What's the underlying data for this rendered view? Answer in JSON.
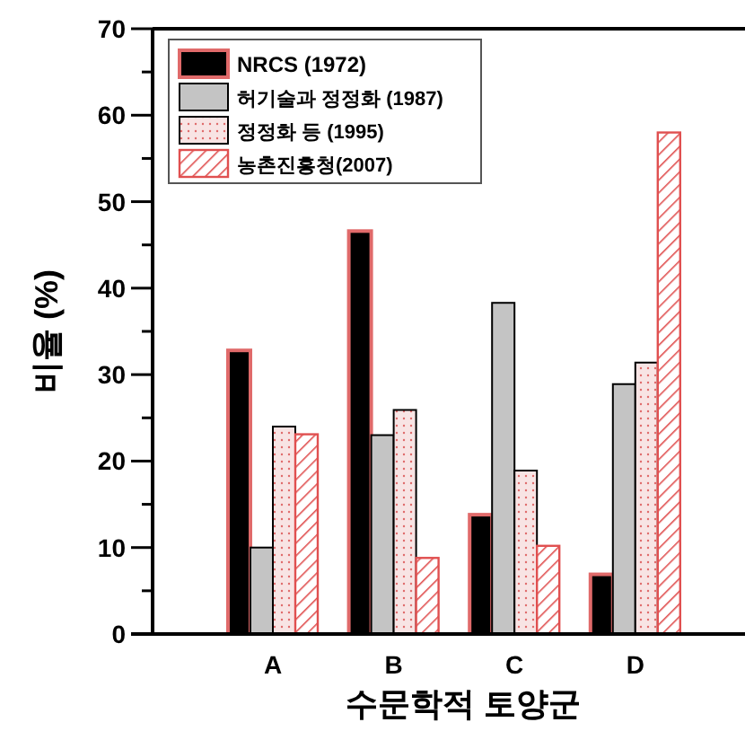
{
  "chart_data": {
    "type": "bar",
    "xlabel": "수문학적 토양군",
    "ylabel": "비율 (%)",
    "categories": [
      "A",
      "B",
      "C",
      "D"
    ],
    "series": [
      {
        "name": "NRCS (1972)",
        "color": "#000000",
        "values": [
          32.8,
          46.6,
          13.8,
          6.9
        ]
      },
      {
        "name": "허기술과 정정화 (1987)",
        "color": "#c4c4c4",
        "values": [
          10,
          23,
          38.3,
          28.9
        ]
      },
      {
        "name": "정정화 등 (1995)",
        "color": "#f8e4e4",
        "values": [
          24,
          25.9,
          18.9,
          31.4
        ]
      },
      {
        "name": "농촌진흥청(2007)",
        "color": "#e05050",
        "values": [
          23.1,
          8.8,
          10.2,
          58
        ]
      }
    ],
    "ylim": [
      0,
      70
    ],
    "yticks": [
      0,
      {
        "value": 5,
        "label": null
      },
      10,
      {
        "value": 15,
        "label": null
      },
      20,
      {
        "value": 25,
        "label": null
      },
      30,
      {
        "value": 35,
        "label": null
      },
      40,
      {
        "value": 45,
        "label": null
      },
      50,
      {
        "value": 55,
        "label": null
      },
      60,
      {
        "value": 65,
        "label": null
      },
      70
    ],
    "legend": "top left",
    "grid": false
  }
}
